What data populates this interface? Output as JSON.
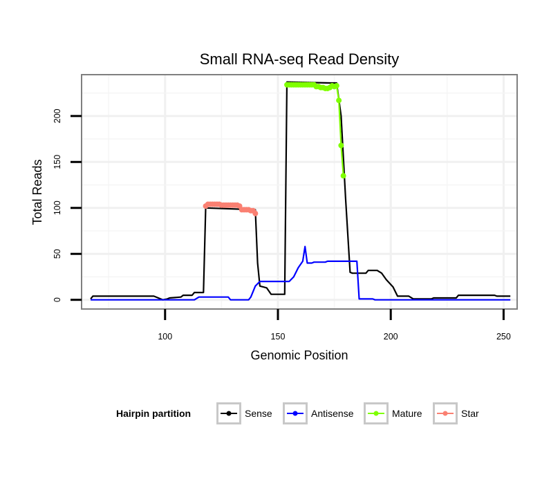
{
  "chart_data": {
    "type": "line",
    "title": "Small RNA-seq Read Density",
    "xlabel": "Genomic Position",
    "ylabel": "Total Reads",
    "xlim": [
      63,
      256
    ],
    "ylim": [
      -10,
      245
    ],
    "x_ticks": [
      100,
      150,
      200,
      250
    ],
    "y_ticks": [
      0,
      50,
      100,
      150,
      200
    ],
    "grid": true,
    "legend": {
      "title": "Hairpin partition",
      "position": "bottom",
      "entries": [
        {
          "name": "Sense",
          "color": "#000000"
        },
        {
          "name": "Antisense",
          "color": "#0000ff"
        },
        {
          "name": "Mature",
          "color": "#7fff00"
        },
        {
          "name": "Star",
          "color": "#fa8072"
        }
      ]
    },
    "series": [
      {
        "name": "Sense",
        "color": "#000000",
        "points": [
          [
            67,
            1
          ],
          [
            68,
            4
          ],
          [
            70,
            4
          ],
          [
            95,
            4
          ],
          [
            97,
            2
          ],
          [
            99,
            0
          ],
          [
            101,
            1
          ],
          [
            102,
            2
          ],
          [
            107,
            3
          ],
          [
            108,
            5
          ],
          [
            112,
            5
          ],
          [
            113,
            8
          ],
          [
            117,
            8
          ],
          [
            118,
            100
          ],
          [
            140,
            98
          ],
          [
            141,
            40
          ],
          [
            142,
            15
          ],
          [
            145,
            13
          ],
          [
            147,
            6
          ],
          [
            153,
            6
          ],
          [
            154,
            237
          ],
          [
            173,
            236
          ],
          [
            176,
            236
          ],
          [
            178,
            200
          ],
          [
            180,
            110
          ],
          [
            182,
            30
          ],
          [
            183,
            29
          ],
          [
            189,
            29
          ],
          [
            190,
            32
          ],
          [
            194,
            32
          ],
          [
            196,
            29
          ],
          [
            198,
            22
          ],
          [
            201,
            14
          ],
          [
            203,
            4
          ],
          [
            208,
            4
          ],
          [
            210,
            1
          ],
          [
            218,
            1
          ],
          [
            219,
            2
          ],
          [
            229,
            2
          ],
          [
            230,
            5
          ],
          [
            246,
            5
          ],
          [
            247,
            4
          ],
          [
            253,
            4
          ]
        ]
      },
      {
        "name": "Antisense",
        "color": "#0000ff",
        "points": [
          [
            67,
            0
          ],
          [
            113,
            0
          ],
          [
            115,
            3
          ],
          [
            128,
            3
          ],
          [
            129,
            0
          ],
          [
            137,
            0
          ],
          [
            138,
            3
          ],
          [
            140,
            15
          ],
          [
            142,
            20
          ],
          [
            155,
            20
          ],
          [
            157,
            25
          ],
          [
            159,
            35
          ],
          [
            161,
            42
          ],
          [
            162,
            58
          ],
          [
            163,
            40
          ],
          [
            165,
            40
          ],
          [
            166,
            41
          ],
          [
            171,
            41
          ],
          [
            172,
            42
          ],
          [
            185,
            42
          ],
          [
            186,
            1
          ],
          [
            192,
            1
          ],
          [
            193,
            0
          ],
          [
            253,
            0
          ]
        ]
      },
      {
        "name": "Mature",
        "color": "#7fff00",
        "points": [
          [
            154,
            234
          ],
          [
            155,
            234
          ],
          [
            156,
            234
          ],
          [
            157,
            234
          ],
          [
            158,
            234
          ],
          [
            159,
            234
          ],
          [
            160,
            234
          ],
          [
            161,
            234
          ],
          [
            162,
            234
          ],
          [
            163,
            234
          ],
          [
            164,
            234
          ],
          [
            165,
            234
          ],
          [
            166,
            234
          ],
          [
            167,
            232
          ],
          [
            168,
            232
          ],
          [
            169,
            231
          ],
          [
            170,
            231
          ],
          [
            171,
            230
          ],
          [
            172,
            230
          ],
          [
            173,
            231
          ],
          [
            174,
            233
          ],
          [
            175,
            232
          ],
          [
            176,
            233
          ],
          [
            177,
            217
          ],
          [
            178,
            168
          ],
          [
            179,
            135
          ]
        ]
      },
      {
        "name": "Star",
        "color": "#fa8072",
        "points": [
          [
            118,
            102
          ],
          [
            119,
            104
          ],
          [
            120,
            104
          ],
          [
            121,
            104
          ],
          [
            122,
            104
          ],
          [
            123,
            104
          ],
          [
            124,
            104
          ],
          [
            125,
            103
          ],
          [
            126,
            103
          ],
          [
            127,
            103
          ],
          [
            128,
            103
          ],
          [
            129,
            103
          ],
          [
            130,
            103
          ],
          [
            131,
            103
          ],
          [
            132,
            103
          ],
          [
            133,
            102
          ],
          [
            134,
            98
          ],
          [
            135,
            98
          ],
          [
            136,
            98
          ],
          [
            137,
            98
          ],
          [
            138,
            97
          ],
          [
            139,
            97
          ],
          [
            140,
            94
          ]
        ]
      }
    ]
  }
}
